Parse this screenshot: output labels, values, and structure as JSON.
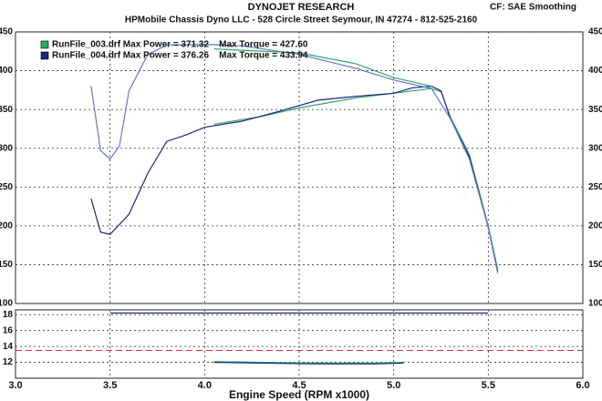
{
  "header": {
    "title": "DYNOJET RESEARCH",
    "subtitle": "HPMobile Chassis Dyno LLC - 528 Circle Street Seymour, IN 47274 - 812-525-2160",
    "settings": "CF: SAE  Smoothing"
  },
  "chart_data": [
    {
      "type": "line",
      "legend": [
        {
          "label": "RunFile_003.drf Max Power = 371.32    Max Torque = 427.60",
          "color": "#2fa866"
        },
        {
          "label": "RunFile_004.drf Max Power = 376.26    Max Torque = 433.94",
          "color": "#1c2585"
        }
      ],
      "xlim": [
        3,
        6
      ],
      "xticks": [
        3,
        3.5,
        4,
        4.5,
        5,
        5.5,
        6
      ],
      "ylim": [
        100,
        450
      ],
      "yticks": [
        100,
        150,
        200,
        250,
        300,
        350,
        400,
        450
      ],
      "y2lim": [
        100,
        450
      ],
      "y2ticks": [
        100,
        150,
        200,
        250,
        300,
        350,
        400,
        450
      ],
      "grid": true,
      "series": [
        {
          "color": "#2fa866",
          "x": [
            4.05,
            4.3,
            4.5,
            4.8,
            5.0,
            5.1,
            5.2,
            5.25,
            5.3,
            5.4,
            5.5,
            5.55
          ],
          "values": [
            331,
            341,
            352,
            365,
            371,
            374,
            377,
            373,
            340,
            292,
            200,
            143
          ]
        },
        {
          "color": "#1c2585",
          "x": [
            3.4,
            3.45,
            3.5,
            3.6,
            3.7,
            3.8,
            3.9,
            4.0,
            4.2,
            4.4,
            4.6,
            4.8,
            5.0,
            5.1,
            5.2,
            5.25,
            5.3,
            5.4,
            5.5,
            5.55
          ],
          "values": [
            235,
            192,
            189,
            215,
            268,
            309,
            317,
            327,
            335,
            348,
            362,
            367,
            371,
            378,
            380,
            374,
            338,
            289,
            198,
            141
          ]
        },
        {
          "color": "#6676d0",
          "x": [
            3.4,
            3.45,
            3.5,
            3.55,
            3.6,
            3.7,
            3.8,
            4.0,
            4.2,
            4.5,
            4.8,
            5.0,
            5.2,
            5.3,
            5.4,
            5.5,
            5.55
          ],
          "values": [
            380,
            297,
            286,
            303,
            374,
            421,
            433,
            434,
            432,
            421,
            403,
            388,
            377,
            338,
            286,
            198,
            139
          ]
        },
        {
          "color": "#2fa866",
          "x": [
            4.05,
            4.5,
            4.8,
            5.0,
            5.2
          ],
          "values": [
            428,
            423,
            409,
            391,
            380
          ]
        }
      ]
    },
    {
      "type": "line",
      "xlim": [
        3,
        6
      ],
      "xticks": [
        {
          "value": 3,
          "label": "3.0"
        },
        {
          "value": 3.5,
          "label": "3.5"
        },
        {
          "value": 4,
          "label": "4.0"
        },
        {
          "value": 4.5,
          "label": "4.5"
        },
        {
          "value": 5,
          "label": "5.0"
        },
        {
          "value": 5.5,
          "label": "5.5"
        },
        {
          "value": 6,
          "label": "6.0"
        }
      ],
      "x_label": "Engine Speed (RPM x1000)",
      "ylim": [
        10,
        18.6
      ],
      "yticks": [
        12,
        14,
        16,
        18
      ],
      "grid": true,
      "reference_line": 13.5,
      "reference_color": "#e03030",
      "series": [
        {
          "color": "#1c2585",
          "x": [
            3.5,
            4.0,
            4.5,
            5.0,
            5.5
          ],
          "values": [
            18.2,
            18.2,
            18.2,
            18.2,
            18.2
          ]
        },
        {
          "color": "#2fa866",
          "x": [
            4.05,
            4.3,
            4.6,
            4.9,
            5.05
          ],
          "values": [
            12.1,
            12.0,
            11.9,
            11.9,
            12.0
          ]
        },
        {
          "color": "#1c2585",
          "x": [
            4.05,
            4.3,
            4.6,
            4.9,
            5.05
          ],
          "values": [
            12.0,
            11.9,
            11.8,
            11.8,
            11.9
          ]
        }
      ]
    }
  ]
}
